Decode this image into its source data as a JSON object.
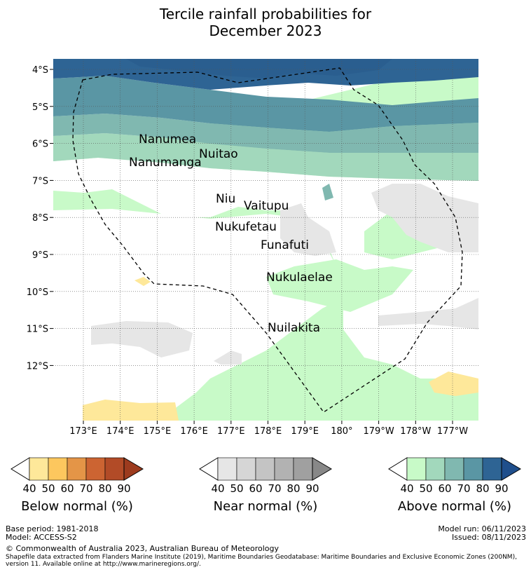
{
  "title": {
    "line1": "Tercile rainfall probabilities for",
    "line2": "December 2023"
  },
  "axes": {
    "lat_labels": [
      "4°S",
      "5°S",
      "6°S",
      "7°S",
      "8°S",
      "9°S",
      "10°S",
      "11°S",
      "12°S"
    ],
    "lon_labels": [
      "173°E",
      "174°E",
      "175°E",
      "176°E",
      "177°E",
      "178°E",
      "179°E",
      "180°",
      "179°W",
      "178°W",
      "177°W"
    ]
  },
  "islands": [
    "Nanumea",
    "Nuitao",
    "Nanumanga",
    "Niu",
    "Vaitupu",
    "Nukufetau",
    "Funafuti",
    "Nukulaelae",
    "Nuilakita"
  ],
  "colorbars": {
    "below": {
      "label": "Below normal (%)",
      "ticks": [
        "40",
        "50",
        "60",
        "70",
        "80",
        "90"
      ],
      "colors": [
        "#fee89a",
        "#fdc75e",
        "#e49547",
        "#cc6432",
        "#b24b27",
        "#9d3b1e"
      ]
    },
    "near": {
      "label": "Near normal (%)",
      "ticks": [
        "40",
        "50",
        "60",
        "70",
        "80",
        "90"
      ],
      "colors": [
        "#e6e6e6",
        "#d6d6d6",
        "#c4c4c4",
        "#b2b2b2",
        "#a0a0a0",
        "#888888"
      ]
    },
    "above": {
      "label": "Above normal (%)",
      "ticks": [
        "40",
        "50",
        "60",
        "70",
        "80",
        "90"
      ],
      "colors": [
        "#c8fac8",
        "#a2d8bc",
        "#80b8b0",
        "#5a96a4",
        "#2e6494",
        "#1f4f8c"
      ]
    }
  },
  "footer": {
    "base_period": "Base period: 1981-2018",
    "model": "Model: ACCESS-S2",
    "model_run": "Model run: 06/11/2023",
    "issued": "Issued: 08/11/2023",
    "copyright": "© Commonwealth of Australia 2023, Australian Bureau of Meteorology",
    "shapefile_1": "Shapefile data extracted from Flanders Marine Institute (2019), Maritime Boundaries Geodatabase: Maritime Boundaries and Exclusive Economic Zones (200NM),",
    "shapefile_2": "version 11. Available online at http://www.marineregions.org/."
  }
}
